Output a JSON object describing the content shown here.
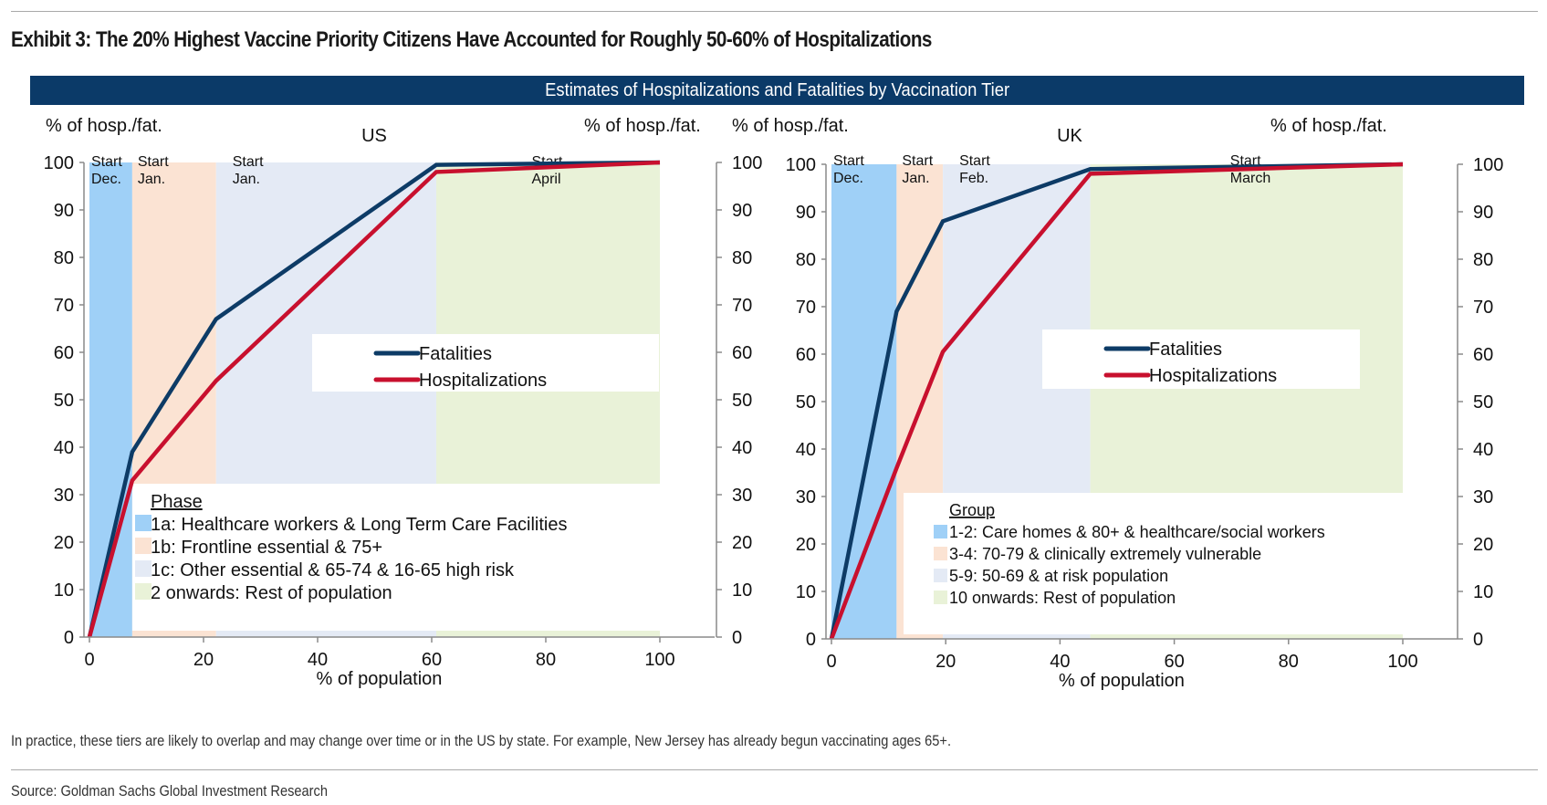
{
  "exhibit_title": "Exhibit 3: The 20% Highest Vaccine Priority Citizens Have Accounted for Roughly 50-60% of Hospitalizations",
  "header_bar": "Estimates of Hospitalizations and Fatalities by Vaccination Tier",
  "footnote": "In practice, these tiers are likely to overlap and may change over time or in the US by state. For example, New Jersey has already begun vaccinating ages 65+.",
  "source": "Source: Goldman Sachs Global Investment Research",
  "colors": {
    "fatalities": "#0d3b66",
    "hospitalizations": "#c8102e",
    "tier1": "#9fd0f7",
    "tier2": "#fbe3d3",
    "tier3": "#e4eaf5",
    "tier4": "#e9f2d8",
    "header": "#0b3a68"
  },
  "chart_data": [
    {
      "type": "line",
      "title": "US",
      "xlabel": "% of population",
      "ylabel_left": "% of hosp./fat.",
      "ylabel_right": "% of hosp./fat.",
      "xlim": [
        0,
        100
      ],
      "ylim": [
        0,
        100
      ],
      "xticks": [
        0,
        20,
        40,
        60,
        80,
        100
      ],
      "yticks": [
        0,
        10,
        20,
        30,
        40,
        50,
        60,
        70,
        80,
        90,
        100
      ],
      "grid": false,
      "series": [
        {
          "name": "Fatalities",
          "x": [
            0,
            7.5,
            22.2,
            60.8,
            100
          ],
          "y": [
            0,
            39,
            67,
            99.5,
            100
          ]
        },
        {
          "name": "Hospitalizations",
          "x": [
            0,
            7.5,
            22.2,
            60.8,
            100
          ],
          "y": [
            0,
            33,
            54,
            98,
            100
          ]
        }
      ],
      "legend_series_position": "center-right",
      "tiers_title": "Phase",
      "tiers": [
        {
          "label": "1a: Healthcare workers & Long Term Care Facilities",
          "start": 0,
          "end": 7.5,
          "annotation": [
            "Start",
            "Dec."
          ]
        },
        {
          "label": "1b: Frontline essential & 75+",
          "start": 7.5,
          "end": 22.2,
          "annotation": [
            "Start",
            "Jan."
          ]
        },
        {
          "label": "1c: Other essential & 65-74 & 16-65 high risk",
          "start": 22.2,
          "end": 60.8,
          "annotation": [
            "Start",
            "Jan."
          ]
        },
        {
          "label": "2 onwards: Rest of population",
          "start": 60.8,
          "end": 100,
          "annotation": [
            "Start",
            "April"
          ]
        }
      ]
    },
    {
      "type": "line",
      "title": "UK",
      "xlabel": "% of population",
      "ylabel_left": "% of hosp./fat.",
      "ylabel_right": "% of hosp./fat.",
      "xlim": [
        0,
        100
      ],
      "ylim": [
        0,
        100
      ],
      "xticks": [
        0,
        20,
        40,
        60,
        80,
        100
      ],
      "yticks": [
        0,
        10,
        20,
        30,
        40,
        50,
        60,
        70,
        80,
        90,
        100
      ],
      "grid": false,
      "series": [
        {
          "name": "Fatalities",
          "x": [
            0,
            11.4,
            19.5,
            45.3,
            100
          ],
          "y": [
            0,
            69,
            88,
            99,
            100
          ]
        },
        {
          "name": "Hospitalizations",
          "x": [
            0,
            11.4,
            19.5,
            45.3,
            100
          ],
          "y": [
            0,
            36,
            60.5,
            98,
            100
          ]
        }
      ],
      "legend_series_position": "center-right",
      "tiers_title": "Group",
      "tiers": [
        {
          "label": "1-2: Care homes & 80+ & healthcare/social workers",
          "start": 0,
          "end": 11.4,
          "annotation": [
            "Start",
            "Dec."
          ]
        },
        {
          "label": "3-4: 70-79 & clinically extremely vulnerable",
          "start": 11.4,
          "end": 19.5,
          "annotation": [
            "Start",
            "Jan."
          ]
        },
        {
          "label": "5-9: 50-69 & at risk population",
          "start": 19.5,
          "end": 45.3,
          "annotation": [
            "Start",
            "Feb."
          ]
        },
        {
          "label": "10 onwards: Rest of population",
          "start": 45.3,
          "end": 100,
          "annotation": [
            "Start",
            "March"
          ]
        }
      ]
    }
  ]
}
